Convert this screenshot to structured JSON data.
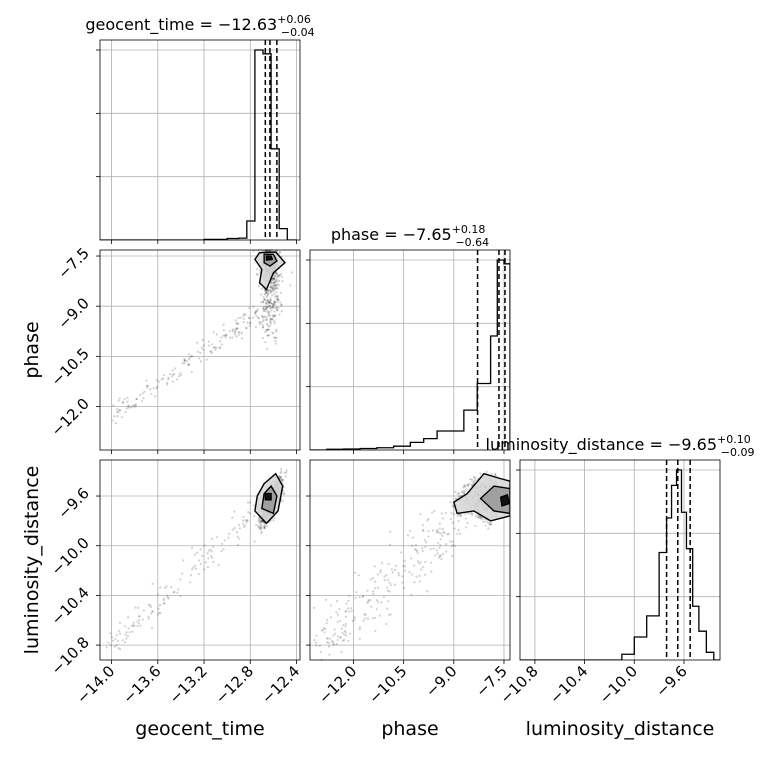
{
  "chart_data": {
    "type": "corner",
    "parameters": [
      "geocent_time",
      "phase",
      "luminosity_distance"
    ],
    "xlabels": [
      "geocent_time",
      "phase",
      "luminosity_distance"
    ],
    "ylabels": [
      "",
      "phase",
      "luminosity_distance"
    ],
    "ranges": {
      "geocent_time": [
        -14.1,
        -12.37
      ],
      "phase": [
        -13.3,
        -7.32
      ],
      "luminosity_distance": [
        -10.92,
        -9.31
      ]
    },
    "ticks": {
      "geocent_time": [
        -14.0,
        -13.6,
        -13.2,
        -12.8,
        -12.4
      ],
      "phase": [
        -12.0,
        -10.5,
        -9.0,
        -7.5
      ],
      "luminosity_distance": [
        -10.8,
        -10.4,
        -10.0,
        -9.6
      ]
    },
    "tick_labels": {
      "geocent_time": [
        "−14.0",
        "−13.6",
        "−13.2",
        "−12.8",
        "−12.4"
      ],
      "phase": [
        "−12.0",
        "−10.5",
        "−9.0",
        "−7.5"
      ],
      "luminosity_distance": [
        "−10.8",
        "−10.4",
        "−10.0",
        "−9.6"
      ]
    },
    "titles": [
      {
        "label": "geocent_time = −12.63",
        "sup": "+0.06",
        "sub": "−0.04"
      },
      {
        "label": "phase = −7.65",
        "sup": "+0.18",
        "sub": "−0.64"
      },
      {
        "label": "luminosity_distance = −9.65",
        "sup": "+0.10",
        "sub": "−0.09"
      }
    ],
    "quantiles": {
      "geocent_time": [
        -12.67,
        -12.63,
        -12.57
      ],
      "phase": [
        -8.29,
        -7.65,
        -7.47
      ],
      "luminosity_distance": [
        -9.74,
        -9.65,
        -9.55
      ]
    },
    "histograms": {
      "geocent_time": {
        "edges": [
          -14.1,
          -13.9,
          -13.8,
          -13.6,
          -13.5,
          -13.3,
          -13.2,
          -13.0,
          -12.9,
          -12.83,
          -12.76,
          -12.69,
          -12.62,
          -12.55,
          -12.48,
          -12.4
        ],
        "counts": [
          0.0,
          0.0,
          0.0,
          0.0,
          0.0,
          0.0,
          0.003,
          0.008,
          0.01,
          0.1,
          1.0,
          0.98,
          0.48,
          0.06,
          0.0
        ]
      },
      "phase": {
        "edges": [
          -13.3,
          -12.8,
          -12.3,
          -11.8,
          -11.3,
          -10.8,
          -10.3,
          -9.9,
          -9.5,
          -9.1,
          -8.7,
          -8.3,
          -7.9,
          -7.7,
          -7.5,
          -7.32
        ],
        "counts": [
          0.0,
          0.004,
          0.005,
          0.008,
          0.012,
          0.02,
          0.04,
          0.06,
          0.1,
          0.1,
          0.21,
          0.35,
          0.6,
          1.0,
          0.98
        ]
      },
      "luminosity_distance": {
        "edges": [
          -10.92,
          -10.1,
          -10.0,
          -9.9,
          -9.8,
          -9.74,
          -9.7,
          -9.66,
          -9.62,
          -9.58,
          -9.53,
          -9.48,
          -9.42,
          -9.36,
          -9.31
        ],
        "counts": [
          0.0,
          0.03,
          0.12,
          0.23,
          0.56,
          0.74,
          0.91,
          0.99,
          0.77,
          0.58,
          0.28,
          0.15,
          0.04,
          0.0
        ]
      }
    },
    "grid": true
  }
}
